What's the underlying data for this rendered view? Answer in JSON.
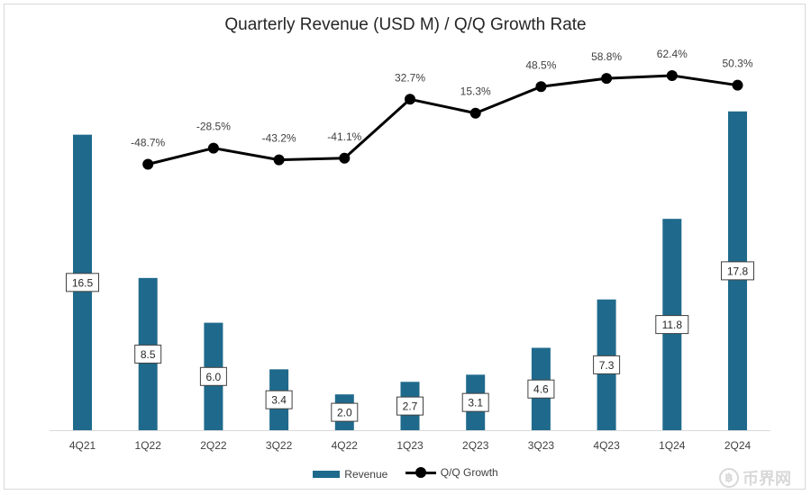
{
  "chart_data": {
    "type": "bar",
    "title": "Quarterly Revenue (USD M) / Q/Q Growth Rate",
    "categories": [
      "4Q21",
      "1Q22",
      "2Q22",
      "3Q22",
      "4Q22",
      "1Q23",
      "2Q23",
      "3Q23",
      "4Q23",
      "1Q24",
      "2Q24"
    ],
    "series": [
      {
        "name": "Revenue",
        "type": "bar",
        "color": "#1f6a8c",
        "values": [
          16.5,
          8.5,
          6.0,
          3.4,
          2.0,
          2.7,
          3.1,
          4.6,
          7.3,
          11.8,
          17.8
        ],
        "labels": [
          "16.5",
          "8.5",
          "6.0",
          "3.4",
          "2.0",
          "2.7",
          "3.1",
          "4.6",
          "7.3",
          "11.8",
          "17.8"
        ]
      },
      {
        "name": "Q/Q Growth",
        "type": "line",
        "color": "#000000",
        "values": [
          null,
          -48.7,
          -28.5,
          -43.2,
          -41.1,
          32.7,
          15.3,
          48.5,
          58.8,
          62.4,
          50.3
        ],
        "labels": [
          "",
          "-48.7%",
          "-28.5%",
          "-43.2%",
          "-41.1%",
          "32.7%",
          "15.3%",
          "48.5%",
          "58.8%",
          "62.4%",
          "50.3%"
        ]
      }
    ],
    "legend_position": "bottom",
    "grid": false
  },
  "watermark": {
    "symbol": "฿",
    "text": "币界网"
  }
}
